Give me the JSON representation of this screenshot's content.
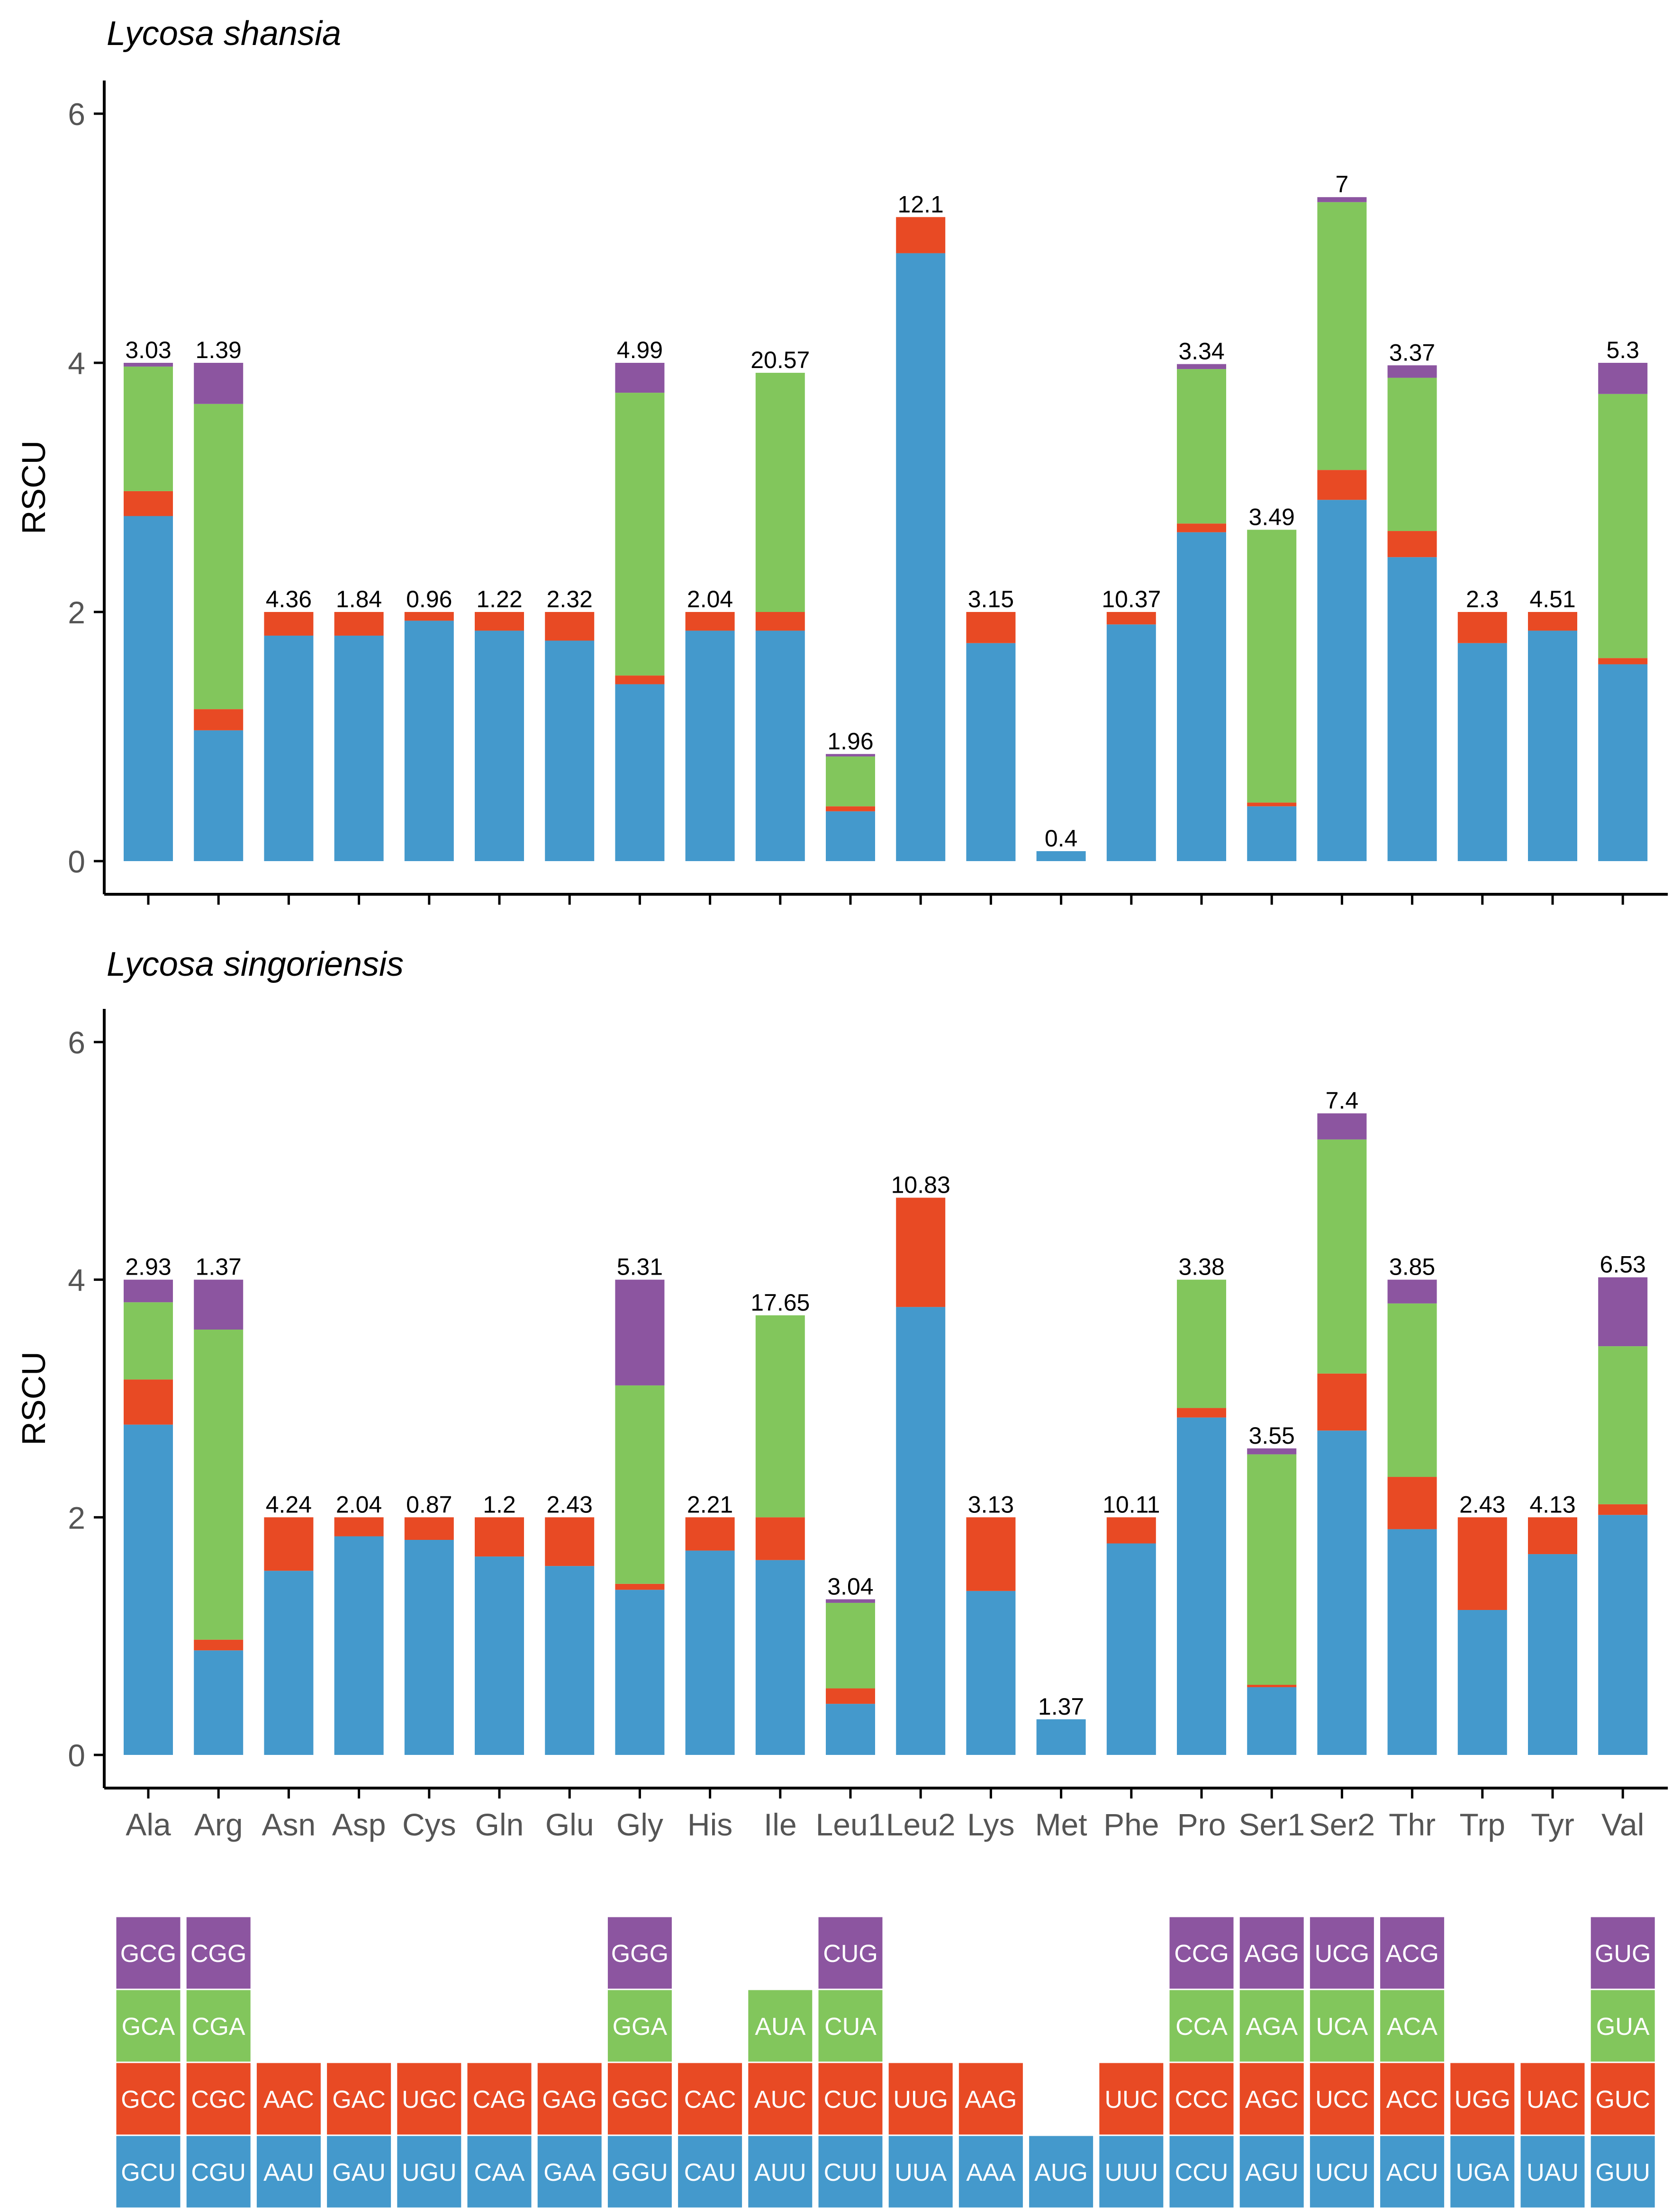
{
  "colors": {
    "stack_1": "#4499cc",
    "stack_2": "#e84a24",
    "stack_3": "#82c65c",
    "stack_4": "#8c55a0",
    "axis": "#000000",
    "tick_label": "#555555"
  },
  "chart_data": [
    {
      "type": "bar",
      "stacked": true,
      "title": "Lycosa shansia",
      "xlabel": "",
      "ylabel": "RSCU",
      "ylim": [
        0,
        6
      ],
      "yticks": [
        0,
        2,
        4,
        6
      ],
      "categories": [
        "Ala",
        "Arg",
        "Asn",
        "Asp",
        "Cys",
        "Gln",
        "Glu",
        "Gly",
        "His",
        "Ile",
        "Leu1",
        "Leu2",
        "Lys",
        "Met",
        "Phe",
        "Pro",
        "Ser1",
        "Ser2",
        "Thr",
        "Trp",
        "Tyr",
        "Val"
      ],
      "series": [
        {
          "name": "codon 1",
          "values": [
            2.77,
            1.05,
            1.81,
            1.81,
            1.93,
            1.85,
            1.77,
            1.42,
            1.85,
            1.85,
            0.4,
            4.88,
            1.75,
            0.08,
            1.9,
            2.64,
            0.44,
            2.9,
            2.44,
            1.75,
            1.85,
            1.58
          ]
        },
        {
          "name": "codon 2",
          "values": [
            0.2,
            0.17,
            0.19,
            0.19,
            0.07,
            0.15,
            0.23,
            0.07,
            0.15,
            0.15,
            0.04,
            0.29,
            0.25,
            0.0,
            0.1,
            0.07,
            0.03,
            0.24,
            0.21,
            0.25,
            0.15,
            0.05
          ]
        },
        {
          "name": "codon 3",
          "values": [
            1.0,
            2.45,
            0.0,
            0.0,
            0.0,
            0.0,
            0.0,
            2.27,
            0.0,
            1.92,
            0.4,
            0.0,
            0.0,
            0.0,
            0.0,
            1.24,
            2.19,
            2.15,
            1.23,
            0.0,
            0.0,
            2.12
          ]
        },
        {
          "name": "codon 4",
          "values": [
            0.03,
            0.33,
            0.0,
            0.0,
            0.0,
            0.0,
            0.0,
            0.24,
            0.0,
            0.0,
            0.02,
            0.0,
            0.0,
            0.0,
            0.0,
            0.04,
            0.0,
            0.04,
            0.1,
            0.0,
            0.0,
            0.25
          ]
        }
      ],
      "labels": [
        "3.03",
        "1.39",
        "4.36",
        "1.84",
        "0.96",
        "1.22",
        "2.32",
        "4.99",
        "2.04",
        "20.57",
        "1.96",
        "12.1",
        "3.15",
        "0.4",
        "10.37",
        "3.34",
        "3.49",
        "7",
        "3.37",
        "2.3",
        "4.51",
        "5.3"
      ]
    },
    {
      "type": "bar",
      "stacked": true,
      "title": "Lycosa singoriensis",
      "xlabel": "",
      "ylabel": "RSCU",
      "ylim": [
        0,
        6
      ],
      "yticks": [
        0,
        2,
        4,
        6
      ],
      "categories": [
        "Ala",
        "Arg",
        "Asn",
        "Asp",
        "Cys",
        "Gln",
        "Glu",
        "Gly",
        "His",
        "Ile",
        "Leu1",
        "Leu2",
        "Lys",
        "Met",
        "Phe",
        "Pro",
        "Ser1",
        "Ser2",
        "Thr",
        "Trp",
        "Tyr",
        "Val"
      ],
      "series": [
        {
          "name": "codon 1",
          "values": [
            2.78,
            0.88,
            1.55,
            1.84,
            1.81,
            1.67,
            1.59,
            1.39,
            1.72,
            1.64,
            0.43,
            3.77,
            1.38,
            0.3,
            1.78,
            2.84,
            0.57,
            2.73,
            1.9,
            1.22,
            1.69,
            2.02
          ]
        },
        {
          "name": "codon 2",
          "values": [
            0.38,
            0.09,
            0.45,
            0.16,
            0.19,
            0.33,
            0.41,
            0.05,
            0.28,
            0.36,
            0.13,
            0.92,
            0.62,
            0.0,
            0.22,
            0.08,
            0.02,
            0.48,
            0.44,
            0.78,
            0.31,
            0.09
          ]
        },
        {
          "name": "codon 3",
          "values": [
            0.65,
            2.61,
            0.0,
            0.0,
            0.0,
            0.0,
            0.0,
            1.67,
            0.0,
            1.7,
            0.72,
            0.0,
            0.0,
            0.0,
            0.0,
            1.08,
            1.94,
            1.97,
            1.46,
            0.0,
            0.0,
            1.33
          ]
        },
        {
          "name": "codon 4",
          "values": [
            0.19,
            0.42,
            0.0,
            0.0,
            0.0,
            0.0,
            0.0,
            0.89,
            0.0,
            0.0,
            0.03,
            0.0,
            0.0,
            0.0,
            0.0,
            0.0,
            0.05,
            0.22,
            0.2,
            0.0,
            0.0,
            0.58
          ]
        }
      ],
      "labels": [
        "2.93",
        "1.37",
        "4.24",
        "2.04",
        "0.87",
        "1.2",
        "2.43",
        "5.31",
        "2.21",
        "17.65",
        "3.04",
        "10.83",
        "3.13",
        "1.37",
        "10.11",
        "3.38",
        "3.55",
        "7.4",
        "3.85",
        "2.43",
        "4.13",
        "6.53"
      ]
    }
  ],
  "codon_legend": {
    "columns": [
      [
        "GCU",
        "GCC",
        "GCA",
        "GCG"
      ],
      [
        "CGU",
        "CGC",
        "CGA",
        "CGG"
      ],
      [
        "AAU",
        "AAC"
      ],
      [
        "GAU",
        "GAC"
      ],
      [
        "UGU",
        "UGC"
      ],
      [
        "CAA",
        "CAG"
      ],
      [
        "GAA",
        "GAG"
      ],
      [
        "GGU",
        "GGC",
        "GGA",
        "GGG"
      ],
      [
        "CAU",
        "CAC"
      ],
      [
        "AUU",
        "AUC",
        "AUA"
      ],
      [
        "CUU",
        "CUC",
        "CUA",
        "CUG"
      ],
      [
        "UUA",
        "UUG"
      ],
      [
        "AAA",
        "AAG"
      ],
      [
        "AUG"
      ],
      [
        "UUU",
        "UUC"
      ],
      [
        "CCU",
        "CCC",
        "CCA",
        "CCG"
      ],
      [
        "AGU",
        "AGC",
        "AGA",
        "AGG"
      ],
      [
        "UCU",
        "UCC",
        "UCA",
        "UCG"
      ],
      [
        "ACU",
        "ACC",
        "ACA",
        "ACG"
      ],
      [
        "UGA",
        "UGG"
      ],
      [
        "UAU",
        "UAC"
      ],
      [
        "GUU",
        "GUC",
        "GUA",
        "GUG"
      ]
    ]
  }
}
